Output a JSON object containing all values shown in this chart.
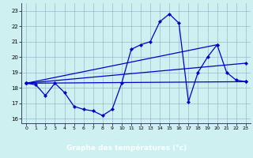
{
  "title": "Graphe des températures (°c)",
  "bg_color": "#cff0f0",
  "label_bg_color": "#000080",
  "label_text_color": "#ffffff",
  "grid_color": "#99bbcc",
  "line_color": "#0000cc",
  "xlim": [
    -0.5,
    23.5
  ],
  "ylim": [
    15.7,
    23.5
  ],
  "yticks": [
    16,
    17,
    18,
    19,
    20,
    21,
    22,
    23
  ],
  "xticks": [
    0,
    1,
    2,
    3,
    4,
    5,
    6,
    7,
    8,
    9,
    10,
    11,
    12,
    13,
    14,
    15,
    16,
    17,
    18,
    19,
    20,
    21,
    22,
    23
  ],
  "series": [
    {
      "x": [
        0,
        1,
        2,
        3,
        4,
        5,
        6,
        7,
        8,
        9,
        10,
        11,
        12,
        13,
        14,
        15,
        16,
        17,
        18,
        19,
        20,
        21,
        22,
        23
      ],
      "y": [
        18.3,
        18.2,
        17.5,
        18.3,
        17.7,
        16.8,
        16.6,
        16.5,
        16.2,
        16.6,
        18.3,
        20.5,
        20.8,
        21.0,
        22.3,
        22.8,
        22.2,
        17.1,
        19.0,
        20.0,
        20.8,
        19.0,
        18.5,
        18.4
      ]
    },
    {
      "x": [
        0,
        23
      ],
      "y": [
        18.3,
        18.4
      ]
    },
    {
      "x": [
        0,
        23
      ],
      "y": [
        18.3,
        19.6
      ]
    },
    {
      "x": [
        0,
        20
      ],
      "y": [
        18.3,
        20.8
      ]
    }
  ]
}
